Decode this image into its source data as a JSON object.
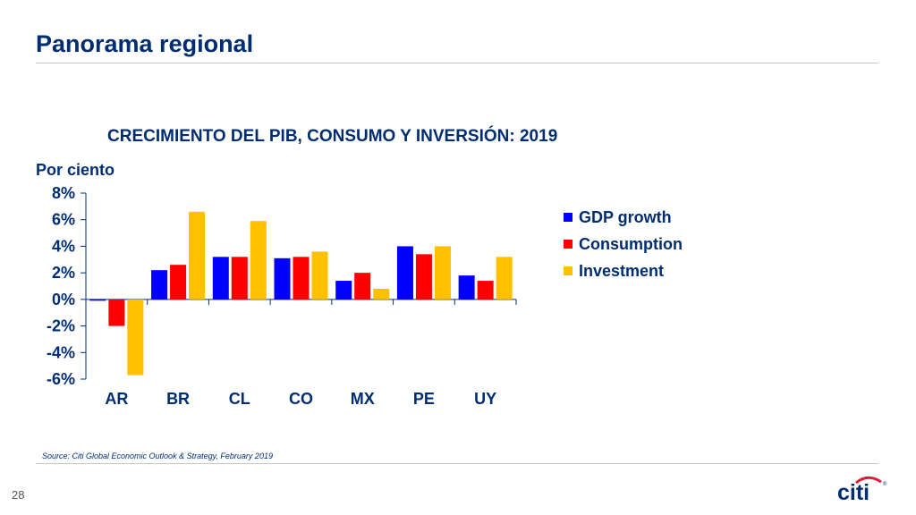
{
  "slide": {
    "title": "Panorama regional",
    "page_number": "28",
    "source": "Source: Citi Global Economic Outlook & Strategy, February 2019",
    "logo_text": "citi"
  },
  "colors": {
    "brand_navy": "#002d72",
    "logo_arc": "#e31837"
  },
  "chart_data": {
    "type": "bar",
    "title": "CRECIMIENTO DEL PIB, CONSUMO Y INVERSIÓN: 2019",
    "ylabel": "Por ciento",
    "xlabel": "",
    "categories": [
      "AR",
      "BR",
      "CL",
      "CO",
      "MX",
      "PE",
      "UY"
    ],
    "series": [
      {
        "name": "GDP growth",
        "color": "#0000ff",
        "values": [
          -0.1,
          2.2,
          3.2,
          3.1,
          1.4,
          4.0,
          1.8
        ]
      },
      {
        "name": "Consumption",
        "color": "#ff0000",
        "values": [
          -2.0,
          2.6,
          3.2,
          3.2,
          2.0,
          3.4,
          1.4
        ]
      },
      {
        "name": "Investment",
        "color": "#ffc000",
        "values": [
          -5.7,
          6.6,
          5.9,
          3.6,
          0.8,
          4.0,
          3.2
        ]
      }
    ],
    "ylim": [
      -6,
      8
    ],
    "ytick_step": 2,
    "ytick_format": "percent",
    "grid": false,
    "legend_position": "right"
  }
}
